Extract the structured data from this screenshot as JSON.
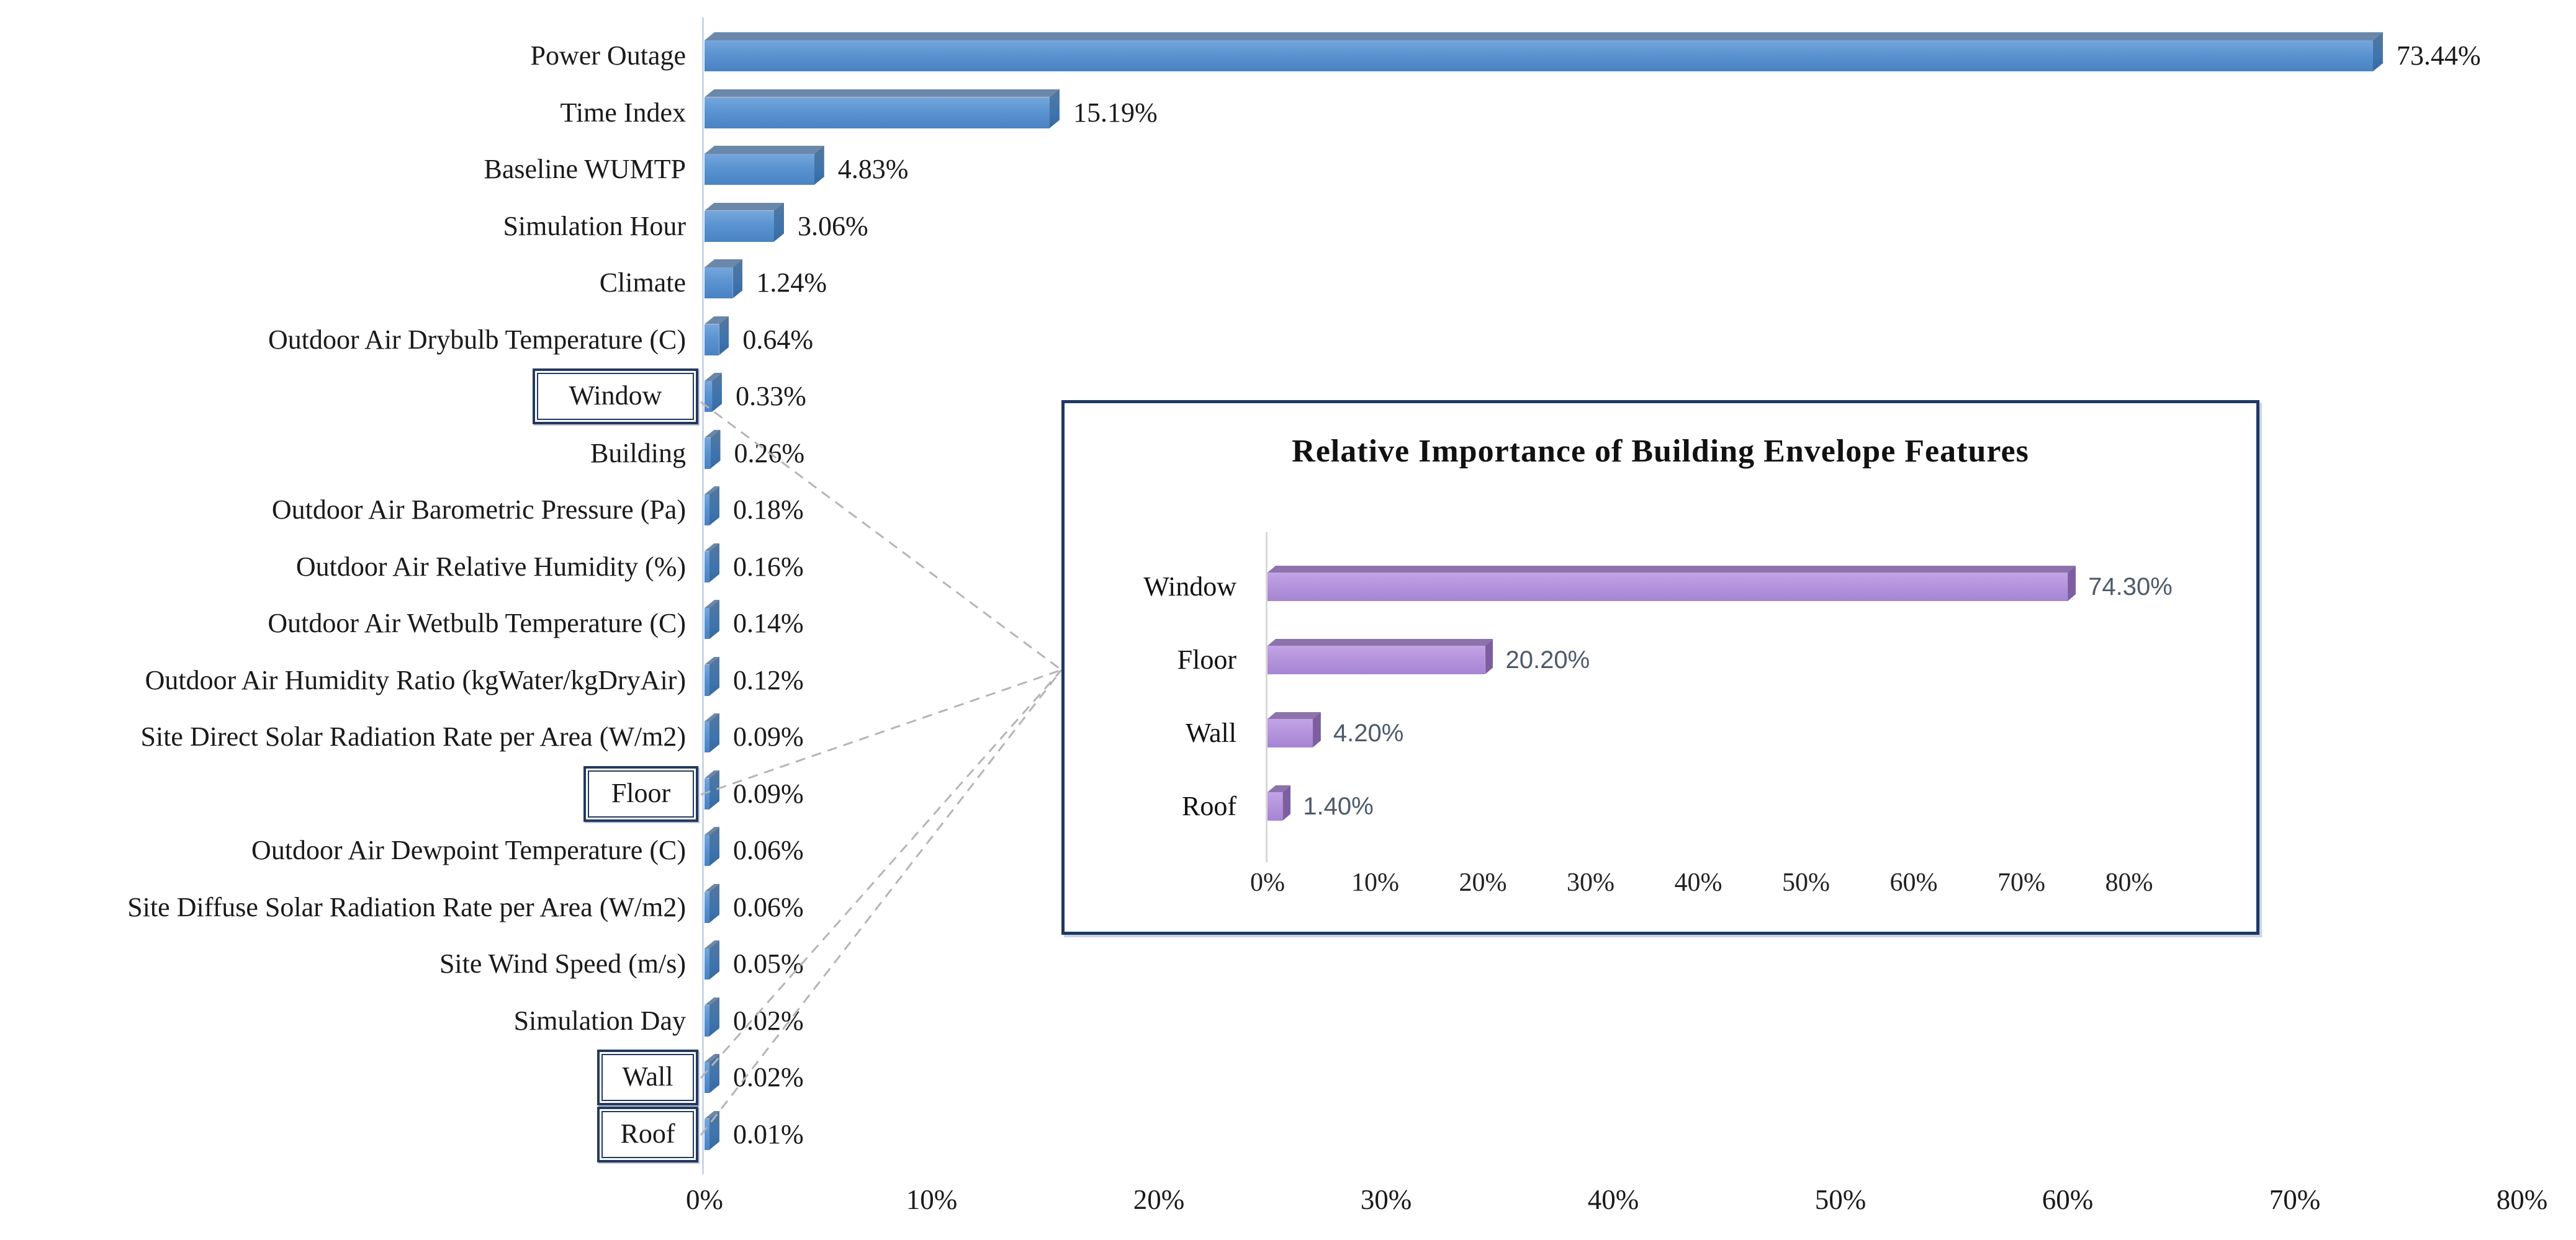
{
  "figure": {
    "description_note": "",
    "colors": {
      "main_bar_front": "#5B94D1",
      "main_bar_top": "#6B87A9",
      "main_bar_side": "#3F74AD",
      "inset_bar_front": "#B694DD",
      "inset_bar_top": "#8D73AB",
      "inset_bar_side": "#7D5FA1",
      "box_border_navy": "#24395E",
      "inset_border_navy": "#1F3864",
      "axis_line": "#C9D6EA",
      "callout_line": "#B5B5B5",
      "inset_value_text": "#4C5A6B",
      "text": "#1A1A1A"
    }
  },
  "chart_data": [
    {
      "type": "bar",
      "orientation": "horizontal",
      "title": "",
      "categories": [
        "Power Outage",
        "Time Index",
        "Baseline WUMTP",
        "Simulation Hour",
        "Climate",
        "Outdoor Air Drybulb Temperature (C)",
        "Window",
        "Building",
        "Outdoor Air Barometric Pressure (Pa)",
        "Outdoor Air Relative Humidity (%)",
        "Outdoor Air Wetbulb Temperature (C)",
        "Outdoor Air Humidity Ratio (kgWater/kgDryAir)",
        "Site Direct Solar Radiation Rate per Area (W/m2)",
        "Floor",
        "Outdoor Air Dewpoint Temperature (C)",
        "Site Diffuse Solar Radiation Rate per Area (W/m2)",
        "Site Wind Speed (m/s)",
        "Simulation Day",
        "Wall",
        "Roof"
      ],
      "values": [
        73.44,
        15.19,
        4.83,
        3.06,
        1.24,
        0.64,
        0.33,
        0.26,
        0.18,
        0.16,
        0.14,
        0.12,
        0.09,
        0.09,
        0.06,
        0.06,
        0.05,
        0.02,
        0.02,
        0.01
      ],
      "value_labels": [
        "73.44%",
        "15.19%",
        "4.83%",
        "3.06%",
        "1.24%",
        "0.64%",
        "0.33%",
        "0.26%",
        "0.18%",
        "0.16%",
        "0.14%",
        "0.12%",
        "0.09%",
        "0.09%",
        "0.06%",
        "0.06%",
        "0.05%",
        "0.02%",
        "0.02%",
        "0.01%"
      ],
      "boxed_categories": [
        "Window",
        "Floor",
        "Wall",
        "Roof"
      ],
      "x_ticks": [
        "0%",
        "10%",
        "20%",
        "30%",
        "40%",
        "50%",
        "60%",
        "70%",
        "80%"
      ],
      "xlim": [
        0,
        80
      ],
      "grid": "off",
      "legend": "none"
    },
    {
      "type": "bar",
      "orientation": "horizontal",
      "title": "Relative Importance of Building Envelope Features",
      "categories": [
        "Window",
        "Floor",
        "Wall",
        "Roof"
      ],
      "values": [
        74.3,
        20.2,
        4.2,
        1.4
      ],
      "value_labels": [
        "74.30%",
        "20.20%",
        "4.20%",
        "1.40%"
      ],
      "x_ticks": [
        "0%",
        "10%",
        "20%",
        "30%",
        "40%",
        "50%",
        "60%",
        "70%",
        "80%"
      ],
      "xlim": [
        0,
        80
      ],
      "grid": "off",
      "legend": "none"
    }
  ]
}
